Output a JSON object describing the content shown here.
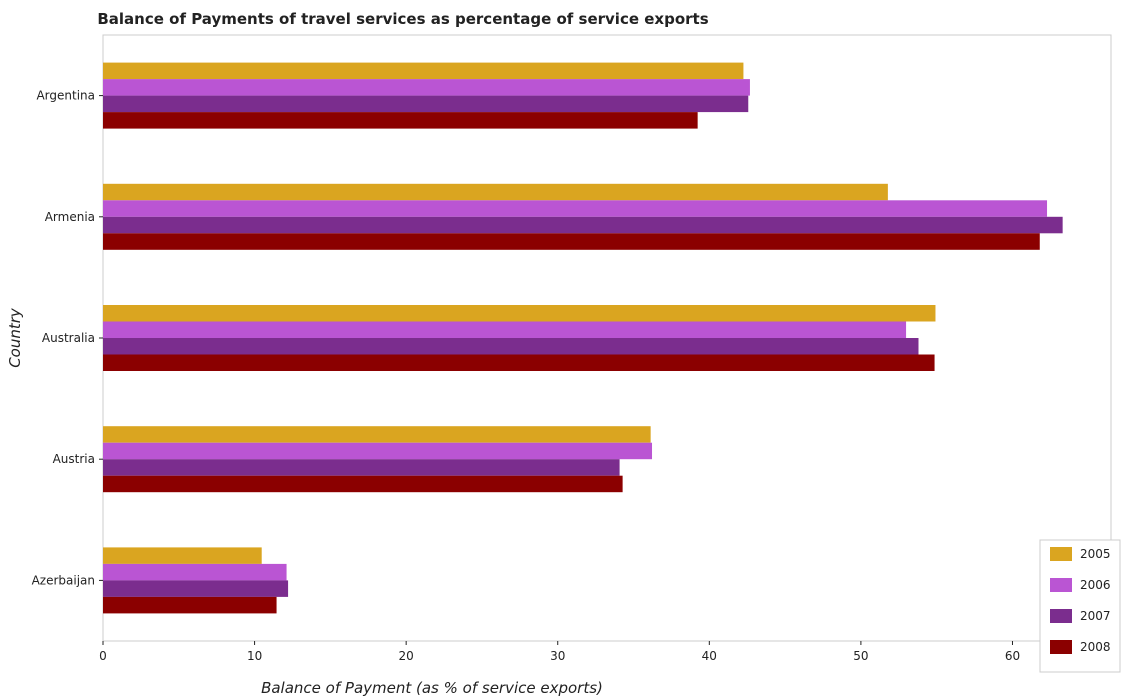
{
  "chart_data": {
    "type": "bar",
    "orientation": "horizontal",
    "title": "Balance of Payments of travel services as percentage of service exports",
    "xlabel": "Balance of Payment (as % of service exports)",
    "ylabel": "Country",
    "categories": [
      "Argentina",
      "Armenia",
      "Australia",
      "Austria",
      "Azerbaijan"
    ],
    "series": [
      {
        "name": "2005",
        "color": "#DAA520",
        "values": [
          42.25,
          51.78,
          54.92,
          36.13,
          10.47
        ]
      },
      {
        "name": "2006",
        "color": "#BA55D3",
        "values": [
          42.68,
          62.28,
          52.98,
          36.22,
          12.11
        ]
      },
      {
        "name": "2007",
        "color": "#7B2D8E",
        "values": [
          42.57,
          63.31,
          53.8,
          34.08,
          12.21
        ]
      },
      {
        "name": "2008",
        "color": "#8B0000",
        "values": [
          39.23,
          61.8,
          54.86,
          34.28,
          11.45
        ]
      }
    ],
    "xticks": [
      0,
      10,
      20,
      30,
      40,
      50,
      60
    ],
    "xlim": [
      0,
      66.5
    ],
    "grid": false,
    "legend_position": "bottom-right"
  }
}
